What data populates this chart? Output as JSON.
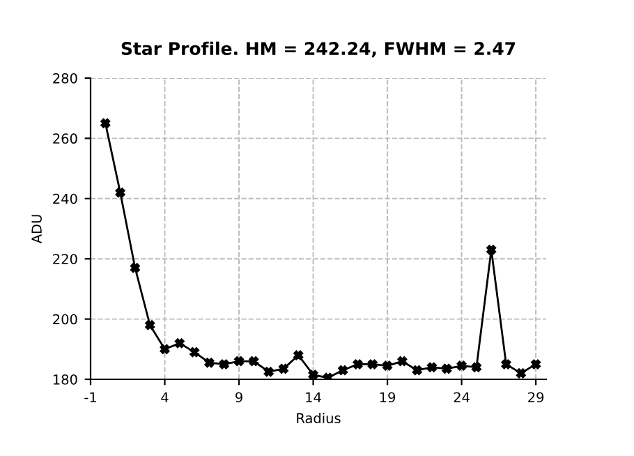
{
  "chart_data": {
    "type": "line",
    "title": "Star Profile. HM = 242.24, FWHM = 2.47",
    "xlabel": "Radius",
    "ylabel": "ADU",
    "x": [
      0,
      1,
      2,
      3,
      4,
      5,
      6,
      7,
      8,
      9,
      10,
      11,
      12,
      13,
      14,
      15,
      16,
      17,
      18,
      19,
      20,
      21,
      22,
      23,
      24,
      25,
      26,
      27,
      28,
      29
    ],
    "series": [
      {
        "color": "#000000",
        "values": [
          265,
          242,
          217,
          198,
          190,
          192,
          189,
          185.5,
          185,
          186,
          186,
          182.5,
          183.5,
          188,
          181.5,
          180.5,
          183,
          185,
          185,
          184.5,
          186,
          183,
          184,
          183.5,
          184.5,
          184,
          223,
          185,
          182,
          185
        ]
      }
    ],
    "xlim": [
      -1,
      29.7
    ],
    "xticks": [
      -1,
      4,
      9,
      14,
      19,
      24,
      29
    ],
    "ylim": [
      180,
      280
    ],
    "yticks": [
      180,
      200,
      220,
      240,
      260,
      280
    ],
    "grid": true,
    "marker": "cross",
    "line_style": "solid"
  }
}
